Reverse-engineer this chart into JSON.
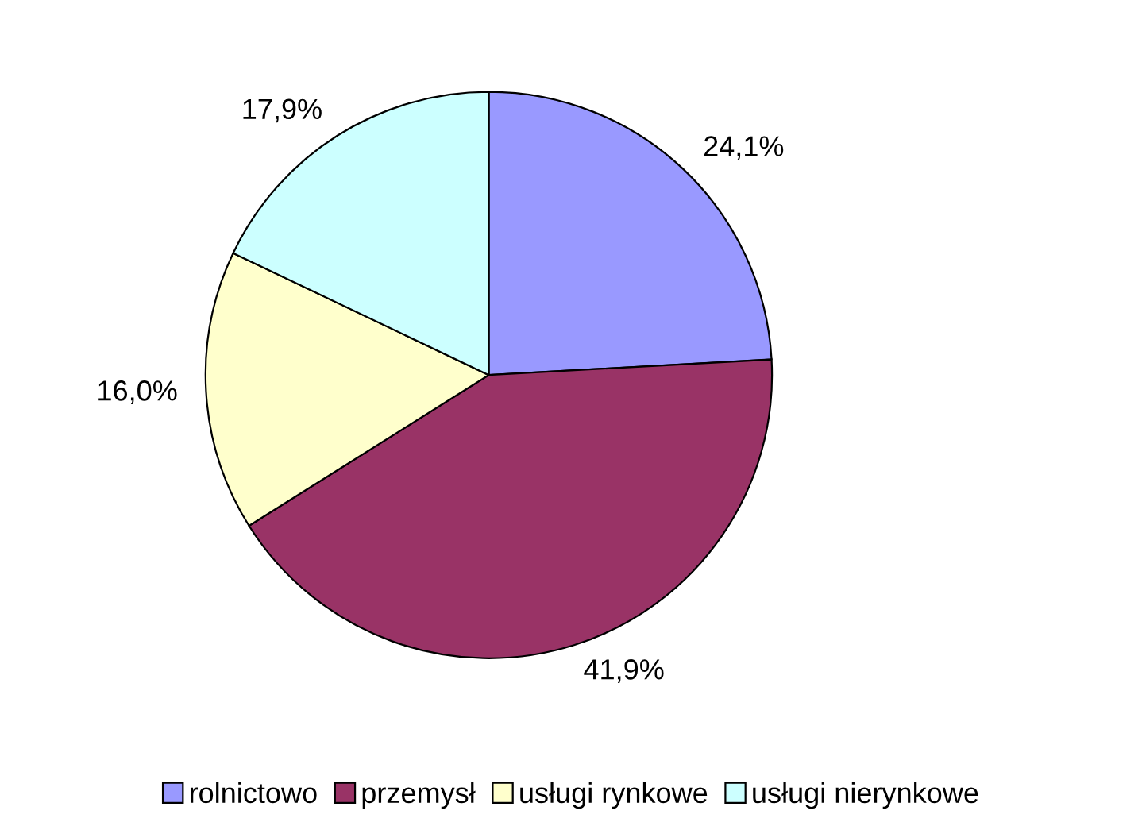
{
  "chart_data": {
    "type": "pie",
    "categories": [
      "rolnictowo",
      "przemysł",
      "usługi rynkowe",
      "usługi nierynkowe"
    ],
    "values": [
      24.1,
      41.9,
      16.0,
      17.9
    ],
    "colors": [
      "#9999ff",
      "#993366",
      "#ffffcc",
      "#ccffff"
    ],
    "value_labels": [
      "24,1%",
      "41,9%",
      "16,0%",
      "17,9%"
    ],
    "legend": "bottom"
  }
}
